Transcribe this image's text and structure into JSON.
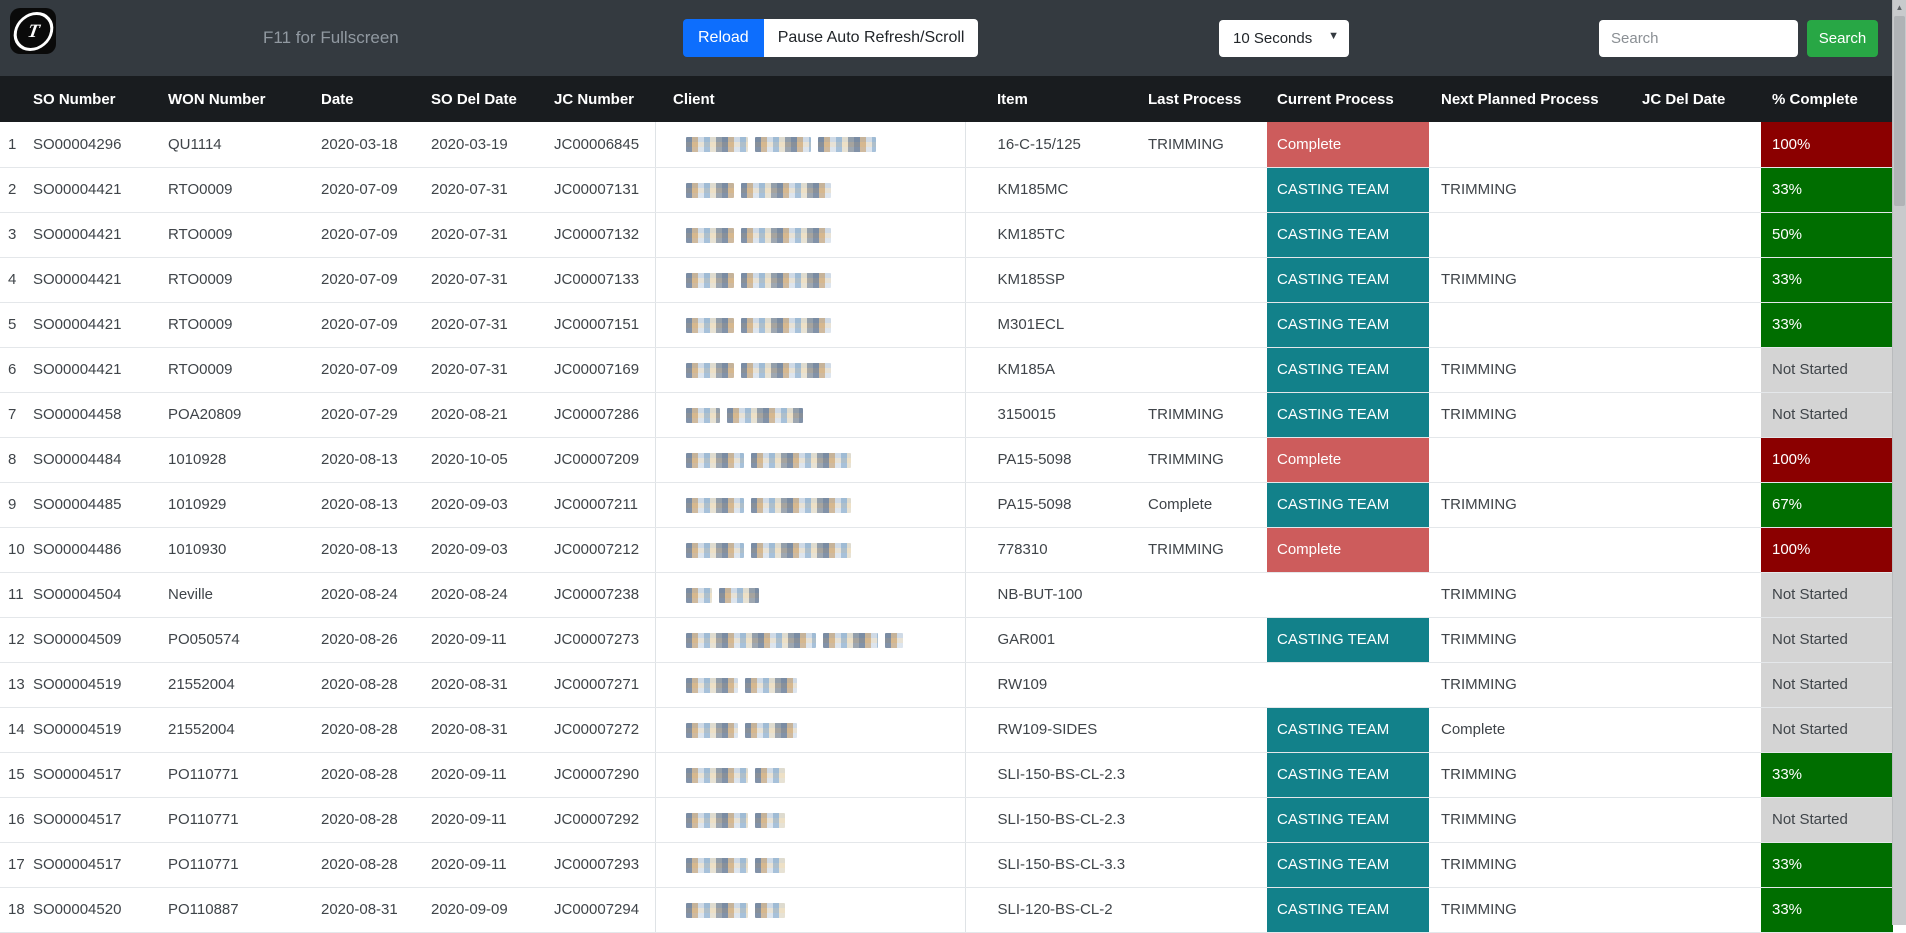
{
  "navbar": {
    "logo_glyph": "T",
    "fullscreen_hint": "F11 for Fullscreen",
    "reload_label": "Reload",
    "pause_label": "Pause Auto Refresh/Scroll",
    "interval_value": "10 Seconds",
    "search_placeholder": "Search",
    "search_button_label": "Search"
  },
  "colors": {
    "teal": "#12818a",
    "red": "#cd5c5c",
    "darkred": "#8b0000",
    "green": "#006e00",
    "gray": "#d4d4d4",
    "accent_blue": "#0d6efd",
    "accent_green": "#28a745"
  },
  "table": {
    "headers": [
      "SO Number",
      "WON Number",
      "Date",
      "SO Del Date",
      "JC Number",
      "Client",
      "Item",
      "Last Process",
      "Current Process",
      "Next Planned Process",
      "JC Del Date",
      "% Complete"
    ],
    "rows": [
      {
        "num": "1",
        "so": "SO00004296",
        "won": "QU1114",
        "date": "2020-03-18",
        "so_del": "2020-03-19",
        "jc": "JC00006845",
        "client_redacted_segments": [
          62,
          56,
          58
        ],
        "item": "16-C-15/125",
        "last": "TRIMMING",
        "current": {
          "label": "Complete",
          "color": "red"
        },
        "next": "",
        "jc_del": "",
        "pct": {
          "label": "100%",
          "color": "darkred"
        }
      },
      {
        "num": "2",
        "so": "SO00004421",
        "won": "RTO0009",
        "date": "2020-07-09",
        "so_del": "2020-07-31",
        "jc": "JC00007131",
        "client_redacted_segments": [
          48,
          90
        ],
        "item": "KM185MC",
        "last": "",
        "current": {
          "label": "CASTING TEAM",
          "color": "teal"
        },
        "next": "TRIMMING",
        "jc_del": "",
        "pct": {
          "label": "33%",
          "color": "green"
        }
      },
      {
        "num": "3",
        "so": "SO00004421",
        "won": "RTO0009",
        "date": "2020-07-09",
        "so_del": "2020-07-31",
        "jc": "JC00007132",
        "client_redacted_segments": [
          48,
          90
        ],
        "item": "KM185TC",
        "last": "",
        "current": {
          "label": "CASTING TEAM",
          "color": "teal"
        },
        "next": "",
        "jc_del": "",
        "pct": {
          "label": "50%",
          "color": "green"
        }
      },
      {
        "num": "4",
        "so": "SO00004421",
        "won": "RTO0009",
        "date": "2020-07-09",
        "so_del": "2020-07-31",
        "jc": "JC00007133",
        "client_redacted_segments": [
          48,
          90
        ],
        "item": "KM185SP",
        "last": "",
        "current": {
          "label": "CASTING TEAM",
          "color": "teal"
        },
        "next": "TRIMMING",
        "jc_del": "",
        "pct": {
          "label": "33%",
          "color": "green"
        }
      },
      {
        "num": "5",
        "so": "SO00004421",
        "won": "RTO0009",
        "date": "2020-07-09",
        "so_del": "2020-07-31",
        "jc": "JC00007151",
        "client_redacted_segments": [
          48,
          90
        ],
        "item": "M301ECL",
        "last": "",
        "current": {
          "label": "CASTING TEAM",
          "color": "teal"
        },
        "next": "",
        "jc_del": "",
        "pct": {
          "label": "33%",
          "color": "green"
        }
      },
      {
        "num": "6",
        "so": "SO00004421",
        "won": "RTO0009",
        "date": "2020-07-09",
        "so_del": "2020-07-31",
        "jc": "JC00007169",
        "client_redacted_segments": [
          48,
          90
        ],
        "item": "KM185A",
        "last": "",
        "current": {
          "label": "CASTING TEAM",
          "color": "teal"
        },
        "next": "TRIMMING",
        "jc_del": "",
        "pct": {
          "label": "Not Started",
          "color": "gray"
        }
      },
      {
        "num": "7",
        "so": "SO00004458",
        "won": "POA20809",
        "date": "2020-07-29",
        "so_del": "2020-08-21",
        "jc": "JC00007286",
        "client_redacted_segments": [
          34,
          76
        ],
        "item": "3150015",
        "last": "TRIMMING",
        "current": {
          "label": "CASTING TEAM",
          "color": "teal"
        },
        "next": "TRIMMING",
        "jc_del": "",
        "pct": {
          "label": "Not Started",
          "color": "gray"
        }
      },
      {
        "num": "8",
        "so": "SO00004484",
        "won": "1010928",
        "date": "2020-08-13",
        "so_del": "2020-10-05",
        "jc": "JC00007209",
        "client_redacted_segments": [
          58,
          100
        ],
        "item": "PA15-5098",
        "last": "TRIMMING",
        "current": {
          "label": "Complete",
          "color": "red"
        },
        "next": "",
        "jc_del": "",
        "pct": {
          "label": "100%",
          "color": "darkred"
        }
      },
      {
        "num": "9",
        "so": "SO00004485",
        "won": "1010929",
        "date": "2020-08-13",
        "so_del": "2020-09-03",
        "jc": "JC00007211",
        "client_redacted_segments": [
          58,
          100
        ],
        "item": "PA15-5098",
        "last": "Complete",
        "current": {
          "label": "CASTING TEAM",
          "color": "teal"
        },
        "next": "TRIMMING",
        "jc_del": "",
        "pct": {
          "label": "67%",
          "color": "green"
        }
      },
      {
        "num": "10",
        "so": "SO00004486",
        "won": "1010930",
        "date": "2020-08-13",
        "so_del": "2020-09-03",
        "jc": "JC00007212",
        "client_redacted_segments": [
          58,
          100
        ],
        "item": "778310",
        "last": "TRIMMING",
        "current": {
          "label": "Complete",
          "color": "red"
        },
        "next": "",
        "jc_del": "",
        "pct": {
          "label": "100%",
          "color": "darkred"
        }
      },
      {
        "num": "11",
        "so": "SO00004504",
        "won": "Neville",
        "date": "2020-08-24",
        "so_del": "2020-08-24",
        "jc": "JC00007238",
        "client_redacted_segments": [
          26,
          40
        ],
        "item": "NB-BUT-100",
        "last": "",
        "current": {
          "label": "",
          "color": ""
        },
        "next": "TRIMMING",
        "jc_del": "",
        "pct": {
          "label": "Not Started",
          "color": "gray"
        }
      },
      {
        "num": "12",
        "so": "SO00004509",
        "won": "PO050574",
        "date": "2020-08-26",
        "so_del": "2020-09-11",
        "jc": "JC00007273",
        "client_redacted_segments": [
          130,
          55,
          18
        ],
        "item": "GAR001",
        "last": "",
        "current": {
          "label": "CASTING TEAM",
          "color": "teal"
        },
        "next": "TRIMMING",
        "jc_del": "",
        "pct": {
          "label": "Not Started",
          "color": "gray"
        }
      },
      {
        "num": "13",
        "so": "SO00004519",
        "won": "21552004",
        "date": "2020-08-28",
        "so_del": "2020-08-31",
        "jc": "JC00007271",
        "client_redacted_segments": [
          52,
          52
        ],
        "item": "RW109",
        "last": "",
        "current": {
          "label": "",
          "color": ""
        },
        "next": "TRIMMING",
        "jc_del": "",
        "pct": {
          "label": "Not Started",
          "color": "gray"
        }
      },
      {
        "num": "14",
        "so": "SO00004519",
        "won": "21552004",
        "date": "2020-08-28",
        "so_del": "2020-08-31",
        "jc": "JC00007272",
        "client_redacted_segments": [
          52,
          52
        ],
        "item": "RW109-SIDES",
        "last": "",
        "current": {
          "label": "CASTING TEAM",
          "color": "teal"
        },
        "next": "Complete",
        "jc_del": "",
        "pct": {
          "label": "Not Started",
          "color": "gray"
        }
      },
      {
        "num": "15",
        "so": "SO00004517",
        "won": "PO110771",
        "date": "2020-08-28",
        "so_del": "2020-09-11",
        "jc": "JC00007290",
        "client_redacted_segments": [
          62,
          30
        ],
        "item": "SLI-150-BS-CL-2.3",
        "last": "",
        "current": {
          "label": "CASTING TEAM",
          "color": "teal"
        },
        "next": "TRIMMING",
        "jc_del": "",
        "pct": {
          "label": "33%",
          "color": "green"
        }
      },
      {
        "num": "16",
        "so": "SO00004517",
        "won": "PO110771",
        "date": "2020-08-28",
        "so_del": "2020-09-11",
        "jc": "JC00007292",
        "client_redacted_segments": [
          62,
          30
        ],
        "item": "SLI-150-BS-CL-2.3",
        "last": "",
        "current": {
          "label": "CASTING TEAM",
          "color": "teal"
        },
        "next": "TRIMMING",
        "jc_del": "",
        "pct": {
          "label": "Not Started",
          "color": "gray"
        }
      },
      {
        "num": "17",
        "so": "SO00004517",
        "won": "PO110771",
        "date": "2020-08-28",
        "so_del": "2020-09-11",
        "jc": "JC00007293",
        "client_redacted_segments": [
          62,
          30
        ],
        "item": "SLI-150-BS-CL-3.3",
        "last": "",
        "current": {
          "label": "CASTING TEAM",
          "color": "teal"
        },
        "next": "TRIMMING",
        "jc_del": "",
        "pct": {
          "label": "33%",
          "color": "green"
        }
      },
      {
        "num": "18",
        "so": "SO00004520",
        "won": "PO110887",
        "date": "2020-08-31",
        "so_del": "2020-09-09",
        "jc": "JC00007294",
        "client_redacted_segments": [
          62,
          30
        ],
        "item": "SLI-120-BS-CL-2",
        "last": "",
        "current": {
          "label": "CASTING TEAM",
          "color": "teal"
        },
        "next": "TRIMMING",
        "jc_del": "",
        "pct": {
          "label": "33%",
          "color": "green"
        }
      }
    ]
  }
}
